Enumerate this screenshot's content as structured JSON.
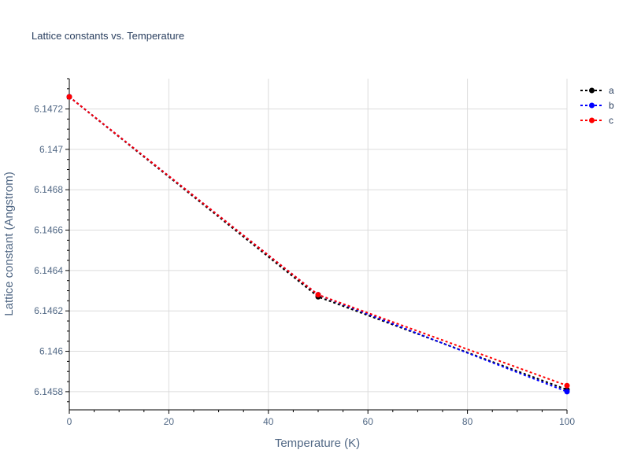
{
  "chart_data": {
    "type": "line",
    "title": "Lattice constants vs. Temperature",
    "xlabel": "Temperature (K)",
    "ylabel": "Lattice constant (Angstrom)",
    "xlim": [
      0,
      100
    ],
    "ylim": [
      6.14571,
      6.14735
    ],
    "xticks": [
      0,
      20,
      40,
      60,
      80,
      100
    ],
    "xtick_labels": [
      "0",
      "20",
      "40",
      "60",
      "80",
      "100"
    ],
    "yticks": [
      6.1458,
      6.146,
      6.1462,
      6.1464,
      6.1466,
      6.1468,
      6.147,
      6.1472
    ],
    "ytick_labels": [
      "6.1458",
      "6.146",
      "6.1462",
      "6.1464",
      "6.1466",
      "6.1468",
      "6.147",
      "6.1472"
    ],
    "grid": true,
    "legend_position": "top-right",
    "x": [
      0,
      50,
      100
    ],
    "series": [
      {
        "name": "a",
        "color": "#000000",
        "values": [
          6.14726,
          6.14627,
          6.14581
        ]
      },
      {
        "name": "b",
        "color": "#0000ff",
        "values": [
          6.14726,
          6.14628,
          6.1458
        ]
      },
      {
        "name": "c",
        "color": "#ff0000",
        "values": [
          6.14726,
          6.14628,
          6.14583
        ]
      }
    ]
  }
}
